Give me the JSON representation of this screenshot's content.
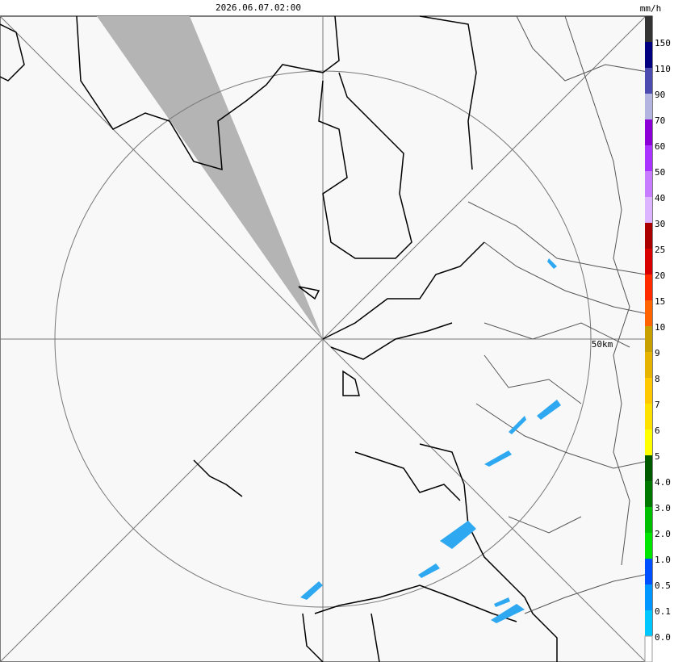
{
  "timestamp": "2026.06.07.02:00",
  "unit": "mm/h",
  "range_label": "50km",
  "scale": {
    "colors": [
      "#333333",
      "#000080",
      "#4b4bb0",
      "#b4b4e0",
      "#8c00d8",
      "#aa33ff",
      "#c87cff",
      "#dcb4ff",
      "#aa0000",
      "#d80000",
      "#ff2a00",
      "#ff6400",
      "#c8a000",
      "#e6b400",
      "#ffc800",
      "#ffe100",
      "#ffff00",
      "#005a00",
      "#007800",
      "#00be00",
      "#00e600",
      "#0050ff",
      "#0096ff",
      "#00c8ff",
      "#ffffff"
    ],
    "labels": [
      "150",
      "110",
      "90",
      "70",
      "60",
      "50",
      "40",
      "30",
      "25",
      "20",
      "15",
      "10",
      "9",
      "8",
      "7",
      "6",
      "5",
      "4.0",
      "3.0",
      "2.0",
      "1.0",
      "0.5",
      "0.1",
      "0.0"
    ]
  }
}
